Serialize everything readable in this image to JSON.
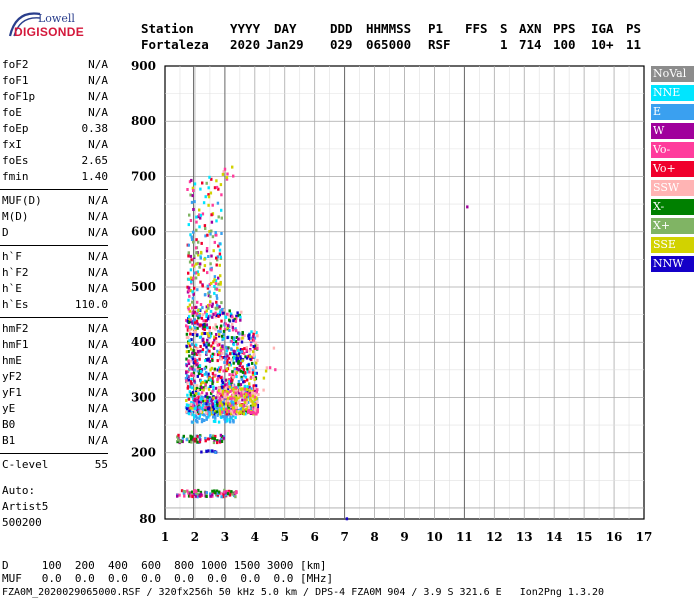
{
  "logo": {
    "line1": "Lowell",
    "line2": "DIGISONDE"
  },
  "header": {
    "labels": [
      "Station",
      "YYYY",
      "DAY",
      "DDD",
      "HHMMSS",
      "P1",
      "FFS",
      "S",
      "AXN",
      "PPS",
      "IGA",
      "PS"
    ],
    "values": [
      "Fortaleza",
      "2020",
      "Jan29",
      "029",
      "065000",
      "RSF",
      "",
      "1",
      "714",
      "100",
      "10+",
      "11"
    ]
  },
  "params_group1": [
    {
      "name": "foF2",
      "value": "N/A"
    },
    {
      "name": "foF1",
      "value": "N/A"
    },
    {
      "name": "foF1p",
      "value": "N/A"
    },
    {
      "name": "foE",
      "value": "N/A"
    },
    {
      "name": "foEp",
      "value": "0.38"
    },
    {
      "name": "fxI",
      "value": "N/A"
    },
    {
      "name": "foEs",
      "value": "2.65"
    },
    {
      "name": "fmin",
      "value": "1.40"
    }
  ],
  "params_group2": [
    {
      "name": "MUF(D)",
      "value": "N/A"
    },
    {
      "name": "M(D)",
      "value": "N/A"
    },
    {
      "name": "D",
      "value": "N/A"
    }
  ],
  "params_group3": [
    {
      "name": "h`F",
      "value": "N/A"
    },
    {
      "name": "h`F2",
      "value": "N/A"
    },
    {
      "name": "h`E",
      "value": "N/A"
    },
    {
      "name": "h`Es",
      "value": "110.0"
    }
  ],
  "params_group4": [
    {
      "name": "hmF2",
      "value": "N/A"
    },
    {
      "name": "hmF1",
      "value": "N/A"
    },
    {
      "name": "hmE",
      "value": "N/A"
    },
    {
      "name": "yF2",
      "value": "N/A"
    },
    {
      "name": "yF1",
      "value": "N/A"
    },
    {
      "name": "yE",
      "value": "N/A"
    },
    {
      "name": "B0",
      "value": "N/A"
    },
    {
      "name": "B1",
      "value": "N/A"
    }
  ],
  "clevel": {
    "name": "C-level",
    "value": "55"
  },
  "auto": [
    "Auto:",
    "Artist5",
    "500200"
  ],
  "legend": [
    {
      "label": "NoVal",
      "color": "#8c8c8c"
    },
    {
      "label": "NNE",
      "color": "#00e5ff"
    },
    {
      "label": "E",
      "color": "#3aa0f0"
    },
    {
      "label": "W",
      "color": "#a0009c"
    },
    {
      "label": "Vo-",
      "color": "#ff3c9c"
    },
    {
      "label": "Vo+",
      "color": "#f0002c"
    },
    {
      "label": "SSW",
      "color": "#ffb4b4"
    },
    {
      "label": "X-",
      "color": "#008000"
    },
    {
      "label": "X+",
      "color": "#80b464"
    },
    {
      "label": "SSE",
      "color": "#d2d200"
    },
    {
      "label": "NNW",
      "color": "#1400c8"
    }
  ],
  "bottom": {
    "d_line": "D     100  200  400  600  800 1000 1500 3000 [km]",
    "muf_line": "MUF   0.0  0.0  0.0  0.0  0.0  0.0  0.0  0.0 [MHz]",
    "footer": "FZA0M_2020029065000.RSF / 320fx256h 50 kHz 5.0 km / DPS-4 FZA0M 904 / 3.9 S 321.6 E   Ion2Png 1.3.20"
  },
  "chart_data": {
    "type": "scatter",
    "xlim": [
      1,
      17
    ],
    "ylim": [
      80,
      900
    ],
    "xticks": [
      "1",
      "2",
      "3",
      "4",
      "5",
      "6",
      "7",
      "8",
      "9",
      "10",
      "11",
      "12",
      "13",
      "14",
      "15",
      "16",
      "17"
    ],
    "yticks": [
      "900",
      "800",
      "700",
      "600",
      "500",
      "400",
      "300",
      "200",
      "80"
    ],
    "grid": true,
    "vertical_markers": [
      1.95,
      3.0,
      7.0,
      11.0
    ],
    "clusters": [
      {
        "name": "Es echoes",
        "x": [
          1.4,
          3.4
        ],
        "y": [
          120,
          132
        ],
        "colors": [
          "#f0002c",
          "#008000",
          "#80b464",
          "#3aa0f0",
          "#ff3c9c",
          "#a0009c"
        ],
        "n": 110
      },
      {
        "name": "Es 2nd hop",
        "x": [
          1.4,
          3.0
        ],
        "y": [
          218,
          232
        ],
        "colors": [
          "#008000",
          "#80b464",
          "#f0002c",
          "#3aa0f0",
          "#a0009c"
        ],
        "n": 60
      },
      {
        "name": "low trace",
        "x": [
          2.2,
          2.8
        ],
        "y": [
          200,
          204
        ],
        "colors": [
          "#1400c8",
          "#3aa0f0"
        ],
        "n": 10
      },
      {
        "name": "F trace base",
        "x": [
          1.9,
          3.4
        ],
        "y": [
          255,
          300
        ],
        "colors": [
          "#3aa0f0",
          "#00e5ff",
          "#3aa0f0"
        ],
        "n": 170
      },
      {
        "name": "F layer main",
        "x": [
          1.7,
          4.1
        ],
        "y": [
          270,
          460
        ],
        "colors": [
          "#f0002c",
          "#a0009c",
          "#ff3c9c",
          "#3aa0f0",
          "#00e5ff",
          "#d2d200",
          "#ffb4b4",
          "#1400c8",
          "#008000"
        ],
        "n": 1100
      },
      {
        "name": "F yellow lower",
        "x": [
          2.8,
          4.1
        ],
        "y": [
          270,
          320
        ],
        "colors": [
          "#d2d200",
          "#d2d200",
          "#ffb4b4",
          "#ff3c9c"
        ],
        "n": 160
      },
      {
        "name": "F spread upper",
        "x": [
          1.75,
          2.9
        ],
        "y": [
          460,
          700
        ],
        "colors": [
          "#00e5ff",
          "#3aa0f0",
          "#f0002c",
          "#a0009c",
          "#ff3c9c",
          "#d2d200",
          "#80b464"
        ],
        "n": 210
      },
      {
        "name": "F spread top",
        "x": [
          2.9,
          3.4
        ],
        "y": [
          690,
          720
        ],
        "colors": [
          "#ffb4b4",
          "#ff3c9c",
          "#d2d200"
        ],
        "n": 8
      },
      {
        "name": "F sparse tail",
        "x": [
          3.9,
          4.7
        ],
        "y": [
          300,
          410
        ],
        "colors": [
          "#ffb4b4",
          "#d2d200",
          "#ff3c9c"
        ],
        "n": 12
      },
      {
        "name": "isolated 11MHz",
        "x": [
          11.05,
          11.1
        ],
        "y": [
          644,
          646
        ],
        "colors": [
          "#a0009c"
        ],
        "n": 1
      },
      {
        "name": "isolated 7MHz",
        "x": [
          7.05,
          7.1
        ],
        "y": [
          80,
          83
        ],
        "colors": [
          "#1400c8"
        ],
        "n": 1
      }
    ]
  }
}
